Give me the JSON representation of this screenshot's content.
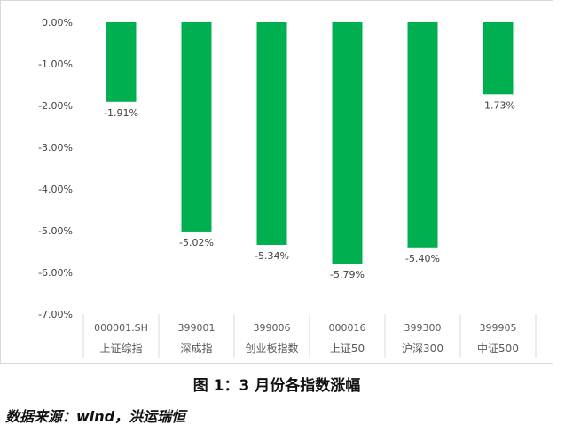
{
  "chart_data": {
    "type": "bar",
    "categories": [
      {
        "code": "000001.SH",
        "name": "上证综指"
      },
      {
        "code": "399001",
        "name": "深成指"
      },
      {
        "code": "399006",
        "name": "创业板指数"
      },
      {
        "code": "000016",
        "name": "上证50"
      },
      {
        "code": "399300",
        "name": "沪深300"
      },
      {
        "code": "399905",
        "name": "中证500"
      }
    ],
    "values": [
      -1.91,
      -5.02,
      -5.34,
      -5.79,
      -5.4,
      -1.73
    ],
    "data_labels": [
      "-1.91%",
      "-5.02%",
      "-5.34%",
      "-5.79%",
      "-5.40%",
      "-1.73%"
    ],
    "ylim": [
      -7,
      0
    ],
    "yticks": [
      0,
      -1,
      -2,
      -3,
      -4,
      -5,
      -6,
      -7
    ],
    "ytick_labels": [
      "0.00%",
      "-1.00%",
      "-2.00%",
      "-3.00%",
      "-4.00%",
      "-5.00%",
      "-6.00%",
      "-7.00%"
    ],
    "bar_color": "#00b050",
    "grid": false,
    "title": "",
    "xlabel": "",
    "ylabel": ""
  },
  "caption": "图 1：3 月份各指数涨幅",
  "source": "数据来源：wind，洪运瑞恒"
}
